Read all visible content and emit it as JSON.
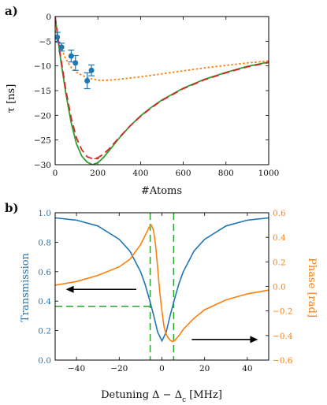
{
  "chart_data": [
    {
      "panel_label": "a)",
      "type": "line",
      "xlabel": "#Atoms",
      "ylabel": "τ [ns]",
      "xlim": [
        0,
        1000
      ],
      "ylim": [
        -30,
        0
      ],
      "xticks": [
        "0",
        "200",
        "400",
        "600",
        "800",
        "1000"
      ],
      "yticks": [
        "0",
        "−5",
        "−10",
        "−15",
        "−20",
        "−25",
        "−30"
      ],
      "colors": {
        "green": "#2ca02c",
        "red": "#d62728",
        "orange": "#ff7f0e",
        "blue": "#1f77b4"
      },
      "series": [
        {
          "color": "#2ca02c",
          "style": "solid",
          "x": [
            0,
            10,
            25,
            50,
            75,
            100,
            125,
            150,
            175,
            200,
            225,
            250,
            300,
            350,
            400,
            450,
            500,
            600,
            700,
            800,
            900,
            1000
          ],
          "y": [
            0,
            -3.5,
            -8.5,
            -15.5,
            -21.5,
            -25.8,
            -28.3,
            -29.5,
            -30,
            -29.6,
            -28.6,
            -27.3,
            -24.6,
            -22.2,
            -20.1,
            -18.4,
            -16.9,
            -14.5,
            -12.7,
            -11.3,
            -10.1,
            -9.2
          ]
        },
        {
          "color": "#d62728",
          "style": "dashed",
          "x": [
            0,
            10,
            25,
            50,
            75,
            100,
            125,
            150,
            175,
            200,
            225,
            250,
            300,
            350,
            400,
            450,
            500,
            600,
            700,
            800,
            900,
            1000
          ],
          "y": [
            0,
            -3.3,
            -8,
            -14.8,
            -20.5,
            -24.6,
            -27,
            -28.4,
            -28.8,
            -28.6,
            -27.9,
            -26.9,
            -24.5,
            -22.2,
            -20.2,
            -18.5,
            -17,
            -14.6,
            -12.8,
            -11.4,
            -10.2,
            -9.3
          ]
        },
        {
          "color": "#ff7f0e",
          "style": "dotted",
          "x": [
            0,
            10,
            25,
            50,
            75,
            100,
            150,
            200,
            250,
            300,
            400,
            500,
            600,
            700,
            800,
            900,
            1000
          ],
          "y": [
            -2,
            -3.8,
            -6,
            -8.6,
            -10.3,
            -11.3,
            -12.4,
            -12.9,
            -12.9,
            -12.7,
            -12.2,
            -11.6,
            -11.0,
            -10.4,
            -9.9,
            -9.4,
            -9.0
          ]
        }
      ],
      "points": [
        {
          "x": 10,
          "y": -4.2,
          "err": 1.0
        },
        {
          "x": 30,
          "y": -6.2,
          "err": 0.8
        },
        {
          "x": 75,
          "y": -8.0,
          "err": 1.2
        },
        {
          "x": 95,
          "y": -9.4,
          "err": 1.5
        },
        {
          "x": 150,
          "y": -13.0,
          "err": 1.6
        },
        {
          "x": 170,
          "y": -10.9,
          "err": 1.1
        }
      ]
    },
    {
      "panel_label": "b)",
      "type": "line",
      "xlabel": "Detuning Δ − Δ",
      "xlabel_sub": "c",
      "xlabel_unit": " [MHz]",
      "ylabel": "Transmission",
      "y2label": "Phase [rad]",
      "xlim": [
        -50,
        50
      ],
      "ylim": [
        0,
        1
      ],
      "y2lim": [
        -0.6,
        0.6
      ],
      "xticks": [
        "−40",
        "−20",
        "0",
        "20",
        "40"
      ],
      "yticks": [
        "0.0",
        "0.2",
        "0.4",
        "0.6",
        "0.8",
        "1.0"
      ],
      "y2ticks": [
        "−0.6",
        "−0.4",
        "−0.2",
        "0.0",
        "0.2",
        "0.4",
        "0.6"
      ],
      "series": [
        {
          "name": "Transmission",
          "color": "#1f77b4",
          "axis": "left",
          "style": "solid",
          "x": [
            -50,
            -40,
            -30,
            -20,
            -15,
            -10,
            -8,
            -6,
            -4,
            -2,
            0,
            2,
            4,
            6,
            8,
            10,
            15,
            20,
            30,
            40,
            50
          ],
          "y": [
            0.965,
            0.95,
            0.91,
            0.82,
            0.74,
            0.6,
            0.52,
            0.42,
            0.31,
            0.19,
            0.13,
            0.19,
            0.31,
            0.42,
            0.52,
            0.6,
            0.74,
            0.82,
            0.91,
            0.95,
            0.965
          ]
        },
        {
          "name": "Phase",
          "color": "#ff7f0e",
          "axis": "right",
          "style": "solid",
          "x": [
            -50,
            -40,
            -30,
            -20,
            -15,
            -10,
            -8,
            -6,
            -5,
            -4,
            -3,
            -2,
            -1,
            0,
            1,
            2,
            3,
            4,
            5,
            6,
            8,
            10,
            15,
            20,
            30,
            40,
            50
          ],
          "y": [
            0.01,
            0.04,
            0.09,
            0.16,
            0.22,
            0.34,
            0.41,
            0.48,
            0.5,
            0.46,
            0.34,
            0.15,
            -0.05,
            -0.2,
            -0.33,
            -0.39,
            -0.42,
            -0.44,
            -0.45,
            -0.44,
            -0.4,
            -0.35,
            -0.26,
            -0.19,
            -0.11,
            -0.06,
            -0.03
          ]
        }
      ],
      "guides": {
        "color": "#2ca02c",
        "vlines": [
          -5.5,
          5.5
        ],
        "hline_y": 0.365,
        "hline_xmax": -5.5
      },
      "arrows": [
        {
          "from": [
            -12,
            0.48
          ],
          "to": [
            -45,
            0.48
          ],
          "points_to": "left axis"
        },
        {
          "from": [
            14,
            0.14
          ],
          "to": [
            45,
            0.14
          ],
          "points_to": "right axis"
        }
      ]
    }
  ]
}
